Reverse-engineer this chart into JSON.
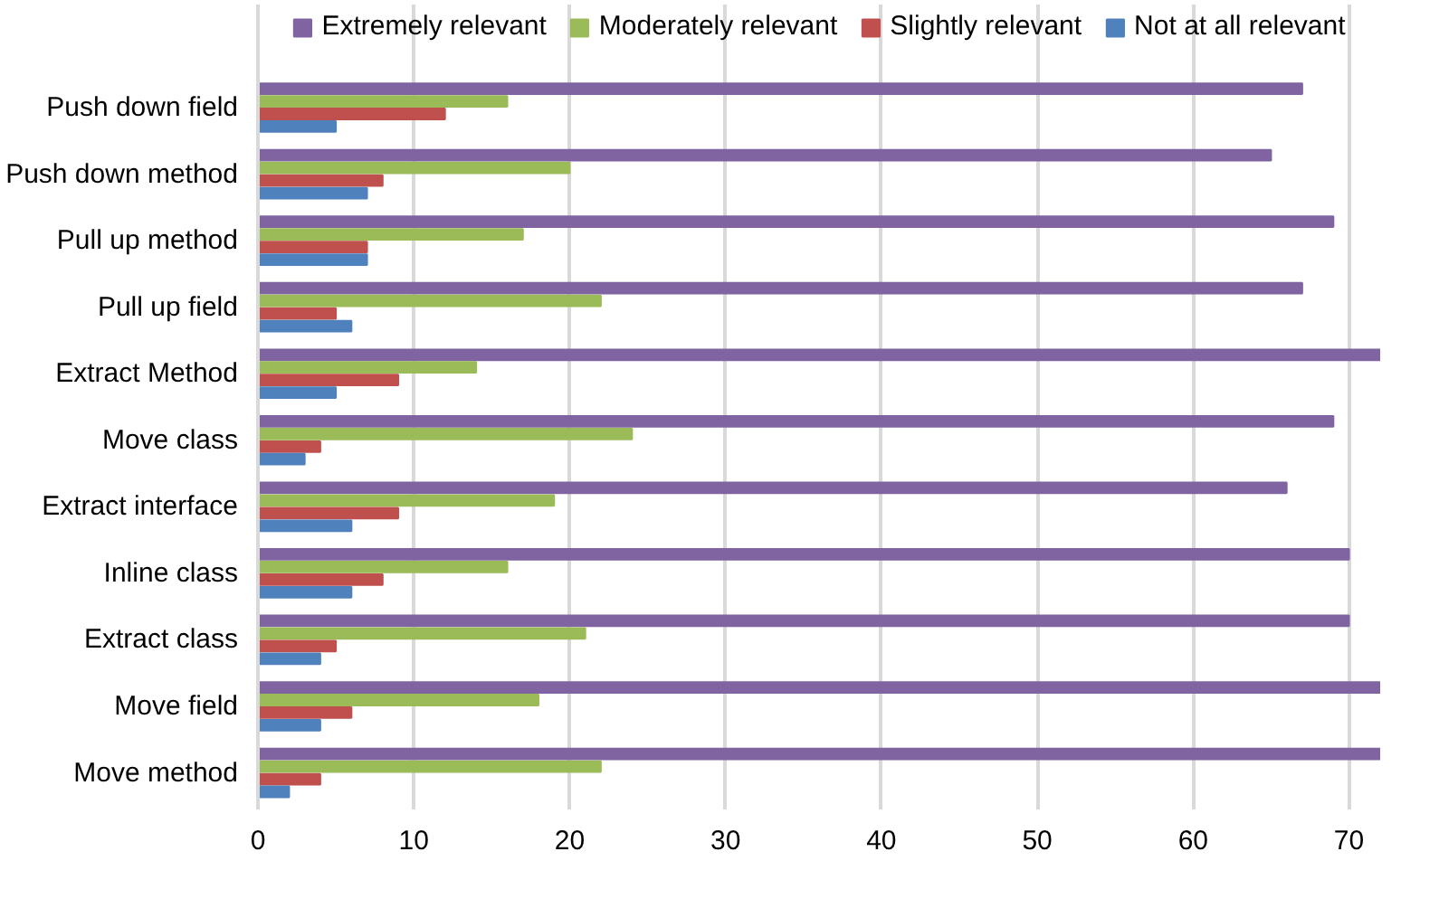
{
  "chart_data": {
    "type": "bar",
    "orientation": "horizontal",
    "categories": [
      "Push down field",
      "Push down method",
      "Pull up method",
      "Pull up field",
      "Extract Method",
      "Move class",
      "Extract interface",
      "Inline class",
      "Extract class",
      "Move field",
      "Move method"
    ],
    "series": [
      {
        "name": "Extremely relevant",
        "color": "#8064a2",
        "values": [
          67,
          65,
          69,
          67,
          72,
          69,
          66,
          70,
          70,
          72,
          72
        ]
      },
      {
        "name": "Moderately relevant",
        "color": "#9bbb59",
        "values": [
          16,
          20,
          17,
          22,
          14,
          24,
          19,
          16,
          21,
          18,
          22
        ]
      },
      {
        "name": "Slightly relevant",
        "color": "#c0504d",
        "values": [
          12,
          8,
          7,
          5,
          9,
          4,
          9,
          8,
          5,
          6,
          4
        ]
      },
      {
        "name": "Not at all relevant",
        "color": "#4f81bd",
        "values": [
          5,
          7,
          7,
          6,
          5,
          3,
          6,
          6,
          4,
          4,
          2
        ]
      }
    ],
    "xlim": [
      0,
      72
    ],
    "xticks": [
      0,
      10,
      20,
      30,
      40,
      50,
      60,
      70
    ],
    "grid": "x",
    "legend": "top"
  }
}
